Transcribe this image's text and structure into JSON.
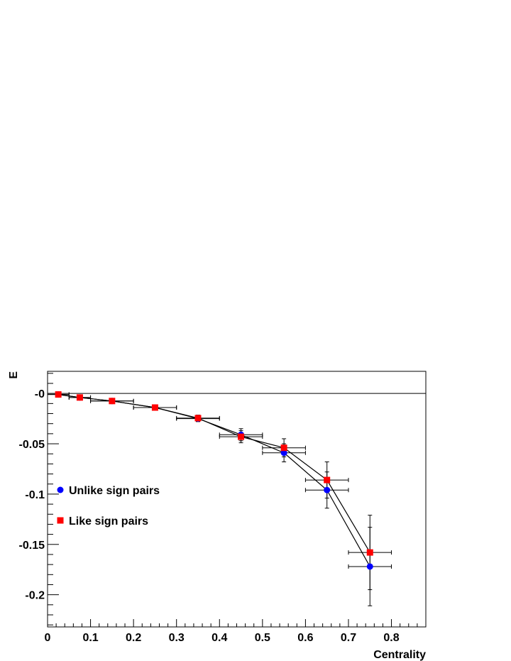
{
  "chart_data": {
    "type": "scatter",
    "title": "",
    "xlabel": "Centrality",
    "ylabel": "E",
    "xlim": [
      0,
      0.88
    ],
    "ylim": [
      -0.232,
      0.022
    ],
    "xticks": [
      0,
      0.1,
      0.2,
      0.3,
      0.4,
      0.5,
      0.6,
      0.7,
      0.8
    ],
    "xtick_labels": [
      "0",
      "0.1",
      "0.2",
      "0.3",
      "0.4",
      "0.5",
      "0.6",
      "0.7",
      "0.8"
    ],
    "yticks": [
      0,
      -0.05,
      -0.1,
      -0.15,
      -0.2
    ],
    "ytick_labels": [
      "-0",
      "-0.05",
      "-0.1",
      "-0.15",
      "-0.2"
    ],
    "zero_line": true,
    "grid": false,
    "legend_position": "middle-left",
    "series": [
      {
        "name": "Unlike sign pairs",
        "marker": "circle",
        "color": "#0000ff",
        "points": [
          {
            "x": 0.025,
            "y": -0.001,
            "xerr": 0.025,
            "yerr": 0.0005
          },
          {
            "x": 0.075,
            "y": -0.004,
            "xerr": 0.025,
            "yerr": 0.0008
          },
          {
            "x": 0.15,
            "y": -0.0075,
            "xerr": 0.05,
            "yerr": 0.001
          },
          {
            "x": 0.25,
            "y": -0.014,
            "xerr": 0.05,
            "yerr": 0.0015
          },
          {
            "x": 0.35,
            "y": -0.025,
            "xerr": 0.05,
            "yerr": 0.003
          },
          {
            "x": 0.45,
            "y": -0.041,
            "xerr": 0.05,
            "yerr": 0.006
          },
          {
            "x": 0.55,
            "y": -0.059,
            "xerr": 0.05,
            "yerr": 0.009
          },
          {
            "x": 0.65,
            "y": -0.096,
            "xerr": 0.05,
            "yerr": 0.018
          },
          {
            "x": 0.75,
            "y": -0.172,
            "xerr": 0.05,
            "yerr": 0.039
          }
        ]
      },
      {
        "name": "Like sign pairs",
        "marker": "square",
        "color": "#ff0000",
        "points": [
          {
            "x": 0.025,
            "y": -0.001,
            "xerr": 0.025,
            "yerr": 0.0005
          },
          {
            "x": 0.075,
            "y": -0.004,
            "xerr": 0.025,
            "yerr": 0.0008
          },
          {
            "x": 0.15,
            "y": -0.0075,
            "xerr": 0.05,
            "yerr": 0.001
          },
          {
            "x": 0.25,
            "y": -0.014,
            "xerr": 0.05,
            "yerr": 0.0015
          },
          {
            "x": 0.35,
            "y": -0.0245,
            "xerr": 0.05,
            "yerr": 0.003
          },
          {
            "x": 0.45,
            "y": -0.043,
            "xerr": 0.05,
            "yerr": 0.006
          },
          {
            "x": 0.55,
            "y": -0.054,
            "xerr": 0.05,
            "yerr": 0.009
          },
          {
            "x": 0.65,
            "y": -0.086,
            "xerr": 0.05,
            "yerr": 0.018
          },
          {
            "x": 0.75,
            "y": -0.158,
            "xerr": 0.05,
            "yerr": 0.037
          }
        ]
      }
    ]
  }
}
